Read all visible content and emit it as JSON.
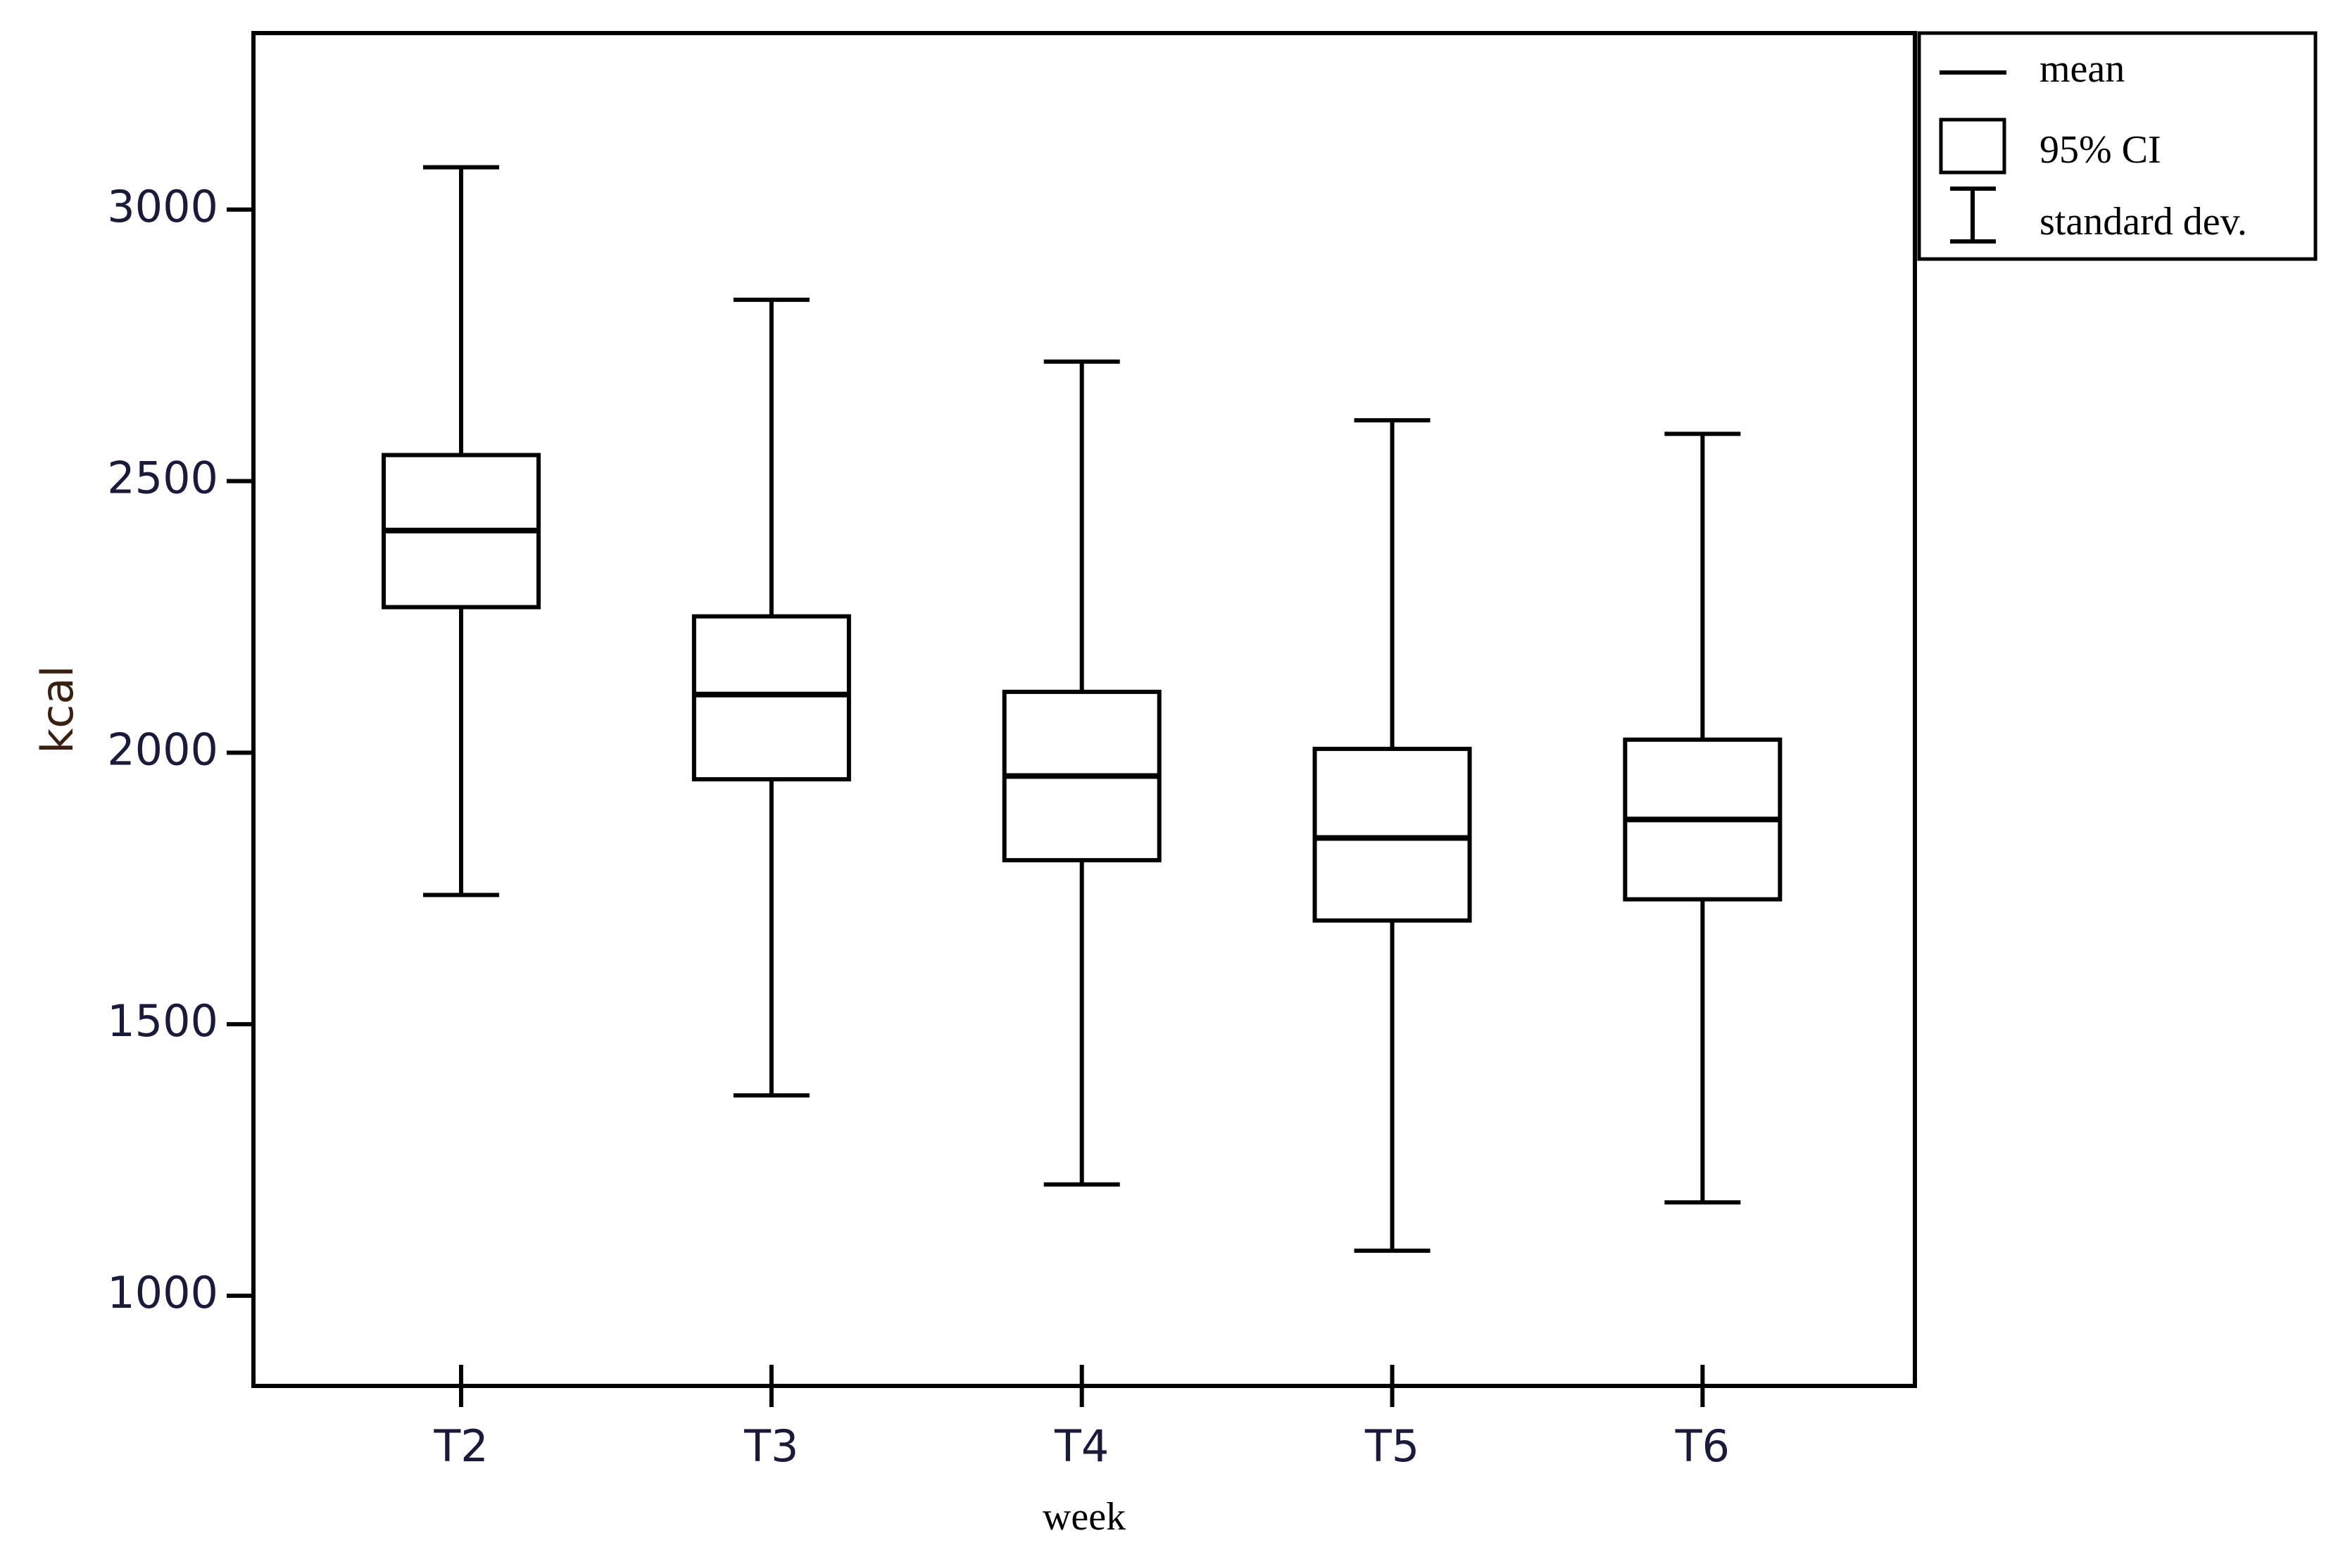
{
  "chart_data": {
    "type": "box",
    "x_label": "week",
    "y_label": "kcal",
    "categories": [
      "T2",
      "T3",
      "T4",
      "T5",
      "T6"
    ],
    "mean": [
      2409,
      2107,
      1957,
      1843,
      1877
    ],
    "ci_high": [
      2548,
      2251,
      2112,
      2007,
      2024
    ],
    "ci_low": [
      2268,
      1951,
      1802,
      1691,
      1730
    ],
    "sd_high": [
      3078,
      2834,
      2720,
      2612,
      2587
    ],
    "sd_low": [
      1738,
      1369,
      1205,
      1083,
      1172
    ],
    "color": "#000000",
    "ylim": [
      834,
      3325
    ],
    "yticks": [
      1000,
      1500,
      2000,
      2500,
      3000
    ],
    "legend": {
      "position": "outside-top-right",
      "mean": "mean",
      "ci": "95% CI",
      "sd": "standard dev."
    }
  }
}
